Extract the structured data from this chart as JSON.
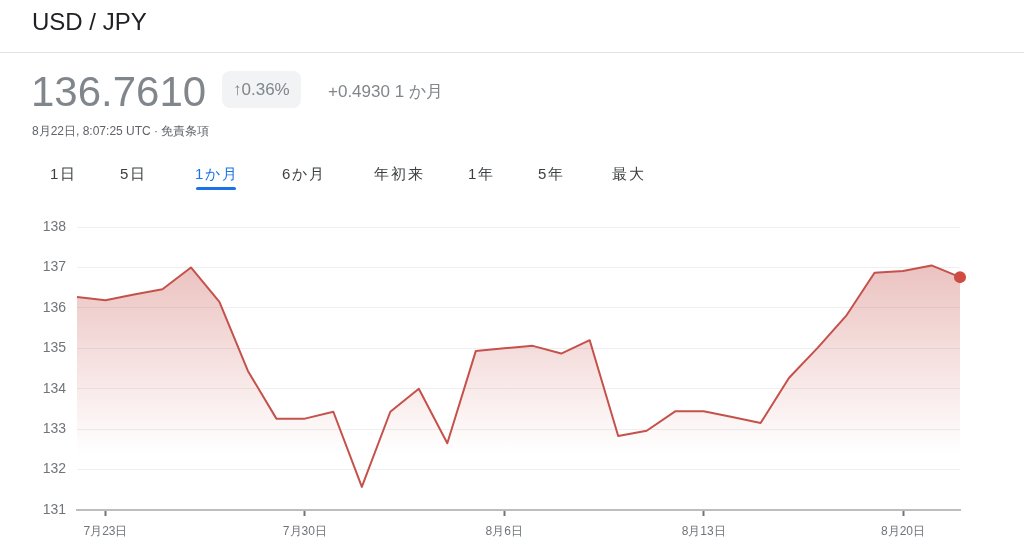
{
  "chart_data": {
    "type": "area",
    "title": "USD / JPY",
    "subtitle": "136.7610",
    "annotations": [
      "↑0.36%",
      "+0.4930 1 か月",
      "8月22日, 8:07:25 UTC · 免責条項",
      "1日",
      "5日",
      "1か月",
      "6か月",
      "年初来",
      "1年",
      "5年",
      "最大"
    ],
    "x": [
      "--07-22",
      "--07-23",
      "--07-24",
      "--07-25",
      "--07-26",
      "--07-27",
      "--07-28",
      "--07-29",
      "--07-30",
      "--07-31",
      "--08-01",
      "--08-02",
      "--08-03",
      "--08-04",
      "--08-05",
      "--08-06",
      "--08-07",
      "--08-08",
      "--08-09",
      "--08-10",
      "--08-11",
      "--08-12",
      "--08-13",
      "--08-14",
      "--08-15",
      "--08-16",
      "--08-17",
      "--08-18",
      "--08-19",
      "--08-20",
      "--08-21",
      "--08-22"
    ],
    "series": [
      {
        "color": "#c5514b",
        "values": [
          136.27,
          136.19,
          136.33,
          136.46,
          137.0,
          136.15,
          134.44,
          133.26,
          133.26,
          133.43,
          131.57,
          133.43,
          134.0,
          132.65,
          134.93,
          135.0,
          135.06,
          134.87,
          135.2,
          132.83,
          132.96,
          133.44,
          133.44,
          133.3,
          133.15,
          134.27,
          135.01,
          135.8,
          136.87,
          136.91,
          137.05,
          136.76
        ]
      },
      {
        "type": "scatter",
        "marker": "circle",
        "color": "#d14b3f",
        "x": [
          "--08-22"
        ],
        "values": [
          136.76
        ]
      }
    ],
    "xlim": [
      "--07-22",
      "--08-22"
    ],
    "xticks": [
      {
        "value": "--07-23",
        "label": "7月23日"
      },
      {
        "value": "--07-30",
        "label": "7月30日"
      },
      {
        "value": "--08-06",
        "label": "8月6日"
      },
      {
        "value": "--08-13",
        "label": "8月13日"
      },
      {
        "value": "--08-20",
        "label": "8月20日"
      }
    ],
    "ylim": [
      131,
      138
    ],
    "yticks": [
      131,
      132,
      133,
      134,
      135,
      136,
      137,
      138
    ],
    "grid": "y"
  }
}
